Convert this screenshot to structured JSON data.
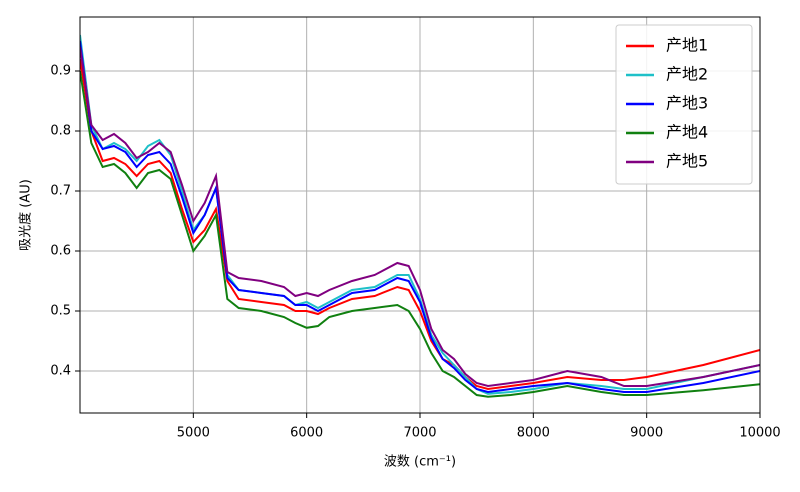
{
  "chart_data": {
    "type": "line",
    "x_label": "波数 (cm⁻¹)",
    "y_label": "吸光度 (AU)",
    "x": [
      4000,
      4100,
      4200,
      4300,
      4400,
      4500,
      4600,
      4700,
      4800,
      4900,
      5000,
      5100,
      5200,
      5300,
      5400,
      5600,
      5800,
      5900,
      6000,
      6100,
      6200,
      6400,
      6600,
      6800,
      6900,
      7000,
      7100,
      7200,
      7300,
      7400,
      7500,
      7600,
      7800,
      8000,
      8300,
      8600,
      8800,
      9000,
      9500,
      10000
    ],
    "series": [
      {
        "name": "产地1",
        "color": "#ff0000",
        "values": [
          0.92,
          0.8,
          0.75,
          0.755,
          0.745,
          0.725,
          0.745,
          0.75,
          0.73,
          0.67,
          0.615,
          0.635,
          0.67,
          0.55,
          0.52,
          0.515,
          0.51,
          0.5,
          0.5,
          0.495,
          0.505,
          0.52,
          0.525,
          0.54,
          0.535,
          0.5,
          0.45,
          0.42,
          0.41,
          0.39,
          0.375,
          0.37,
          0.375,
          0.38,
          0.39,
          0.385,
          0.385,
          0.39,
          0.41,
          0.435
        ]
      },
      {
        "name": "产地2",
        "color": "#1ec0c8",
        "values": [
          0.96,
          0.81,
          0.77,
          0.78,
          0.77,
          0.75,
          0.775,
          0.785,
          0.76,
          0.7,
          0.635,
          0.66,
          0.705,
          0.56,
          0.535,
          0.53,
          0.525,
          0.51,
          0.515,
          0.505,
          0.515,
          0.535,
          0.54,
          0.56,
          0.56,
          0.52,
          0.46,
          0.43,
          0.41,
          0.39,
          0.37,
          0.362,
          0.365,
          0.37,
          0.38,
          0.375,
          0.37,
          0.37,
          0.39,
          0.41
        ]
      },
      {
        "name": "产地3",
        "color": "#0000ff",
        "values": [
          0.95,
          0.8,
          0.77,
          0.775,
          0.765,
          0.74,
          0.76,
          0.765,
          0.745,
          0.69,
          0.63,
          0.66,
          0.705,
          0.555,
          0.535,
          0.53,
          0.525,
          0.51,
          0.51,
          0.5,
          0.51,
          0.53,
          0.535,
          0.555,
          0.55,
          0.515,
          0.455,
          0.42,
          0.405,
          0.385,
          0.37,
          0.365,
          0.37,
          0.375,
          0.38,
          0.37,
          0.365,
          0.365,
          0.38,
          0.4
        ]
      },
      {
        "name": "产地4",
        "color": "#108010",
        "values": [
          0.9,
          0.78,
          0.74,
          0.745,
          0.73,
          0.705,
          0.73,
          0.735,
          0.72,
          0.66,
          0.6,
          0.625,
          0.66,
          0.52,
          0.505,
          0.5,
          0.49,
          0.48,
          0.472,
          0.475,
          0.49,
          0.5,
          0.505,
          0.51,
          0.5,
          0.47,
          0.43,
          0.4,
          0.39,
          0.375,
          0.36,
          0.357,
          0.36,
          0.365,
          0.375,
          0.365,
          0.36,
          0.36,
          0.368,
          0.378
        ]
      },
      {
        "name": "产地5",
        "color": "#800080",
        "values": [
          0.94,
          0.81,
          0.785,
          0.795,
          0.78,
          0.755,
          0.765,
          0.78,
          0.765,
          0.71,
          0.65,
          0.68,
          0.725,
          0.565,
          0.555,
          0.55,
          0.54,
          0.525,
          0.53,
          0.525,
          0.535,
          0.55,
          0.56,
          0.58,
          0.575,
          0.535,
          0.47,
          0.435,
          0.42,
          0.395,
          0.38,
          0.375,
          0.38,
          0.385,
          0.4,
          0.39,
          0.375,
          0.375,
          0.39,
          0.41
        ]
      }
    ],
    "xlim": [
      4000,
      10000
    ],
    "ylim": [
      0.33,
      0.99
    ],
    "xticks": [
      5000,
      6000,
      7000,
      8000,
      9000,
      10000
    ],
    "yticks": [
      0.4,
      0.5,
      0.6,
      0.7,
      0.8,
      0.9
    ],
    "grid": true,
    "legend": "upper right"
  }
}
